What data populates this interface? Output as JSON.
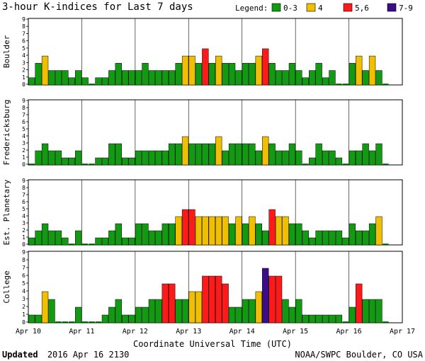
{
  "header": {
    "title": "3-hour K-indices for Last 7 days",
    "legend_label": "Legend:",
    "legend": [
      {
        "label": "0-3",
        "color": "#139a13"
      },
      {
        "label": "4",
        "color": "#f0c000"
      },
      {
        "label": "5,6",
        "color": "#ff1a1a"
      },
      {
        "label": "7-9",
        "color": "#3d0c8a"
      }
    ]
  },
  "footer": {
    "updated_label": "Updated",
    "updated_value": "2016 Apr 16 2130",
    "credit": "NOAA/SWPC Boulder, CO USA"
  },
  "chart_data": {
    "type": "bar",
    "title": "3-hour K-indices for Last 7 days",
    "xlabel": "Coordinate Universal Time (UTC)",
    "ylim": [
      0,
      9
    ],
    "yticks": [
      "0",
      "1",
      "2",
      "3",
      "4",
      "5",
      "6",
      "7",
      "8",
      "9"
    ],
    "x_ticks": [
      "Apr 10",
      "Apr 11",
      "Apr 12",
      "Apr 13",
      "Apr 14",
      "Apr 15",
      "Apr 16",
      "Apr 17"
    ],
    "bins_per_day": 8,
    "color_scale": [
      {
        "max": 3,
        "color": "#139a13"
      },
      {
        "max": 4,
        "color": "#f0c000"
      },
      {
        "max": 6,
        "color": "#ff1a1a"
      },
      {
        "max": 9,
        "color": "#3d0c8a"
      }
    ],
    "series": [
      {
        "name": "Boulder",
        "values": [
          1,
          3,
          4,
          2,
          2,
          2,
          1,
          2,
          1,
          0,
          1,
          1,
          2,
          3,
          2,
          2,
          2,
          3,
          2,
          2,
          2,
          2,
          3,
          4,
          4,
          3,
          5,
          3,
          4,
          3,
          3,
          2,
          3,
          3,
          4,
          5,
          3,
          2,
          2,
          3,
          2,
          1,
          2,
          3,
          1,
          2,
          0,
          0,
          3,
          4,
          2,
          4,
          2,
          0
        ]
      },
      {
        "name": "Fredericksburg",
        "values": [
          0,
          2,
          3,
          2,
          2,
          1,
          1,
          2,
          0,
          0,
          1,
          1,
          3,
          3,
          1,
          1,
          2,
          2,
          2,
          2,
          2,
          3,
          3,
          4,
          3,
          3,
          3,
          3,
          4,
          2,
          3,
          3,
          3,
          3,
          2,
          4,
          3,
          2,
          2,
          3,
          2,
          0,
          1,
          3,
          2,
          2,
          1,
          0,
          2,
          2,
          3,
          2,
          3,
          0
        ]
      },
      {
        "name": "Est. Planetary",
        "values": [
          1,
          2,
          3,
          2,
          2,
          1,
          0,
          2,
          0,
          0,
          1,
          1,
          2,
          3,
          1,
          1,
          3,
          3,
          2,
          2,
          3,
          3,
          4,
          5,
          5,
          4,
          4,
          4,
          4,
          4,
          3,
          4,
          3,
          4,
          3,
          2,
          5,
          4,
          4,
          3,
          3,
          2,
          1,
          2,
          2,
          2,
          2,
          1,
          3,
          2,
          2,
          3,
          4,
          0
        ]
      },
      {
        "name": "College",
        "values": [
          1,
          1,
          4,
          3,
          0,
          0,
          0,
          2,
          0,
          0,
          0,
          1,
          2,
          3,
          1,
          1,
          2,
          2,
          3,
          3,
          5,
          5,
          3,
          3,
          4,
          4,
          6,
          6,
          6,
          5,
          2,
          2,
          3,
          3,
          4,
          7,
          6,
          6,
          3,
          2,
          3,
          1,
          1,
          1,
          1,
          1,
          1,
          0,
          2,
          5,
          3,
          3,
          3,
          0
        ]
      }
    ]
  }
}
